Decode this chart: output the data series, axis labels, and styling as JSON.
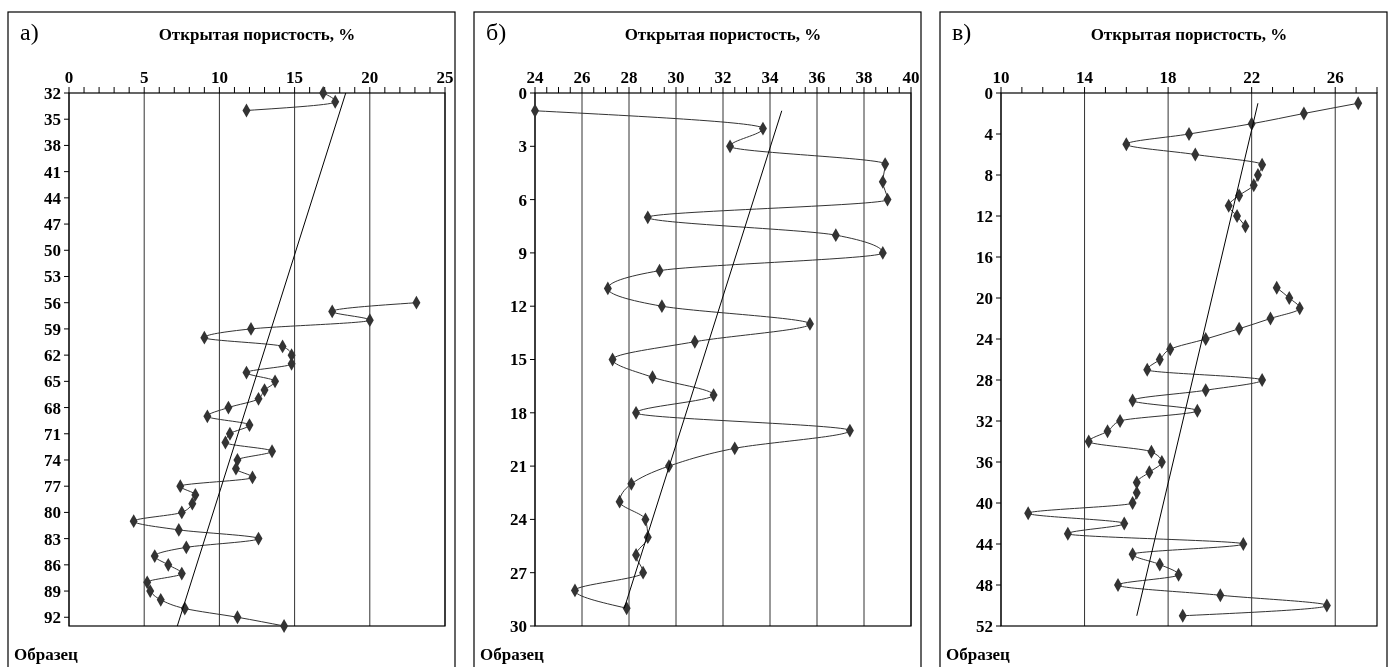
{
  "chart_data": [
    {
      "type": "line",
      "title": "а)",
      "xlabel": "Открытая пористость, %",
      "ylabel": "Образец",
      "orientation": "horizontal",
      "grid": "x",
      "line_style": "solid",
      "xlim": [
        0,
        25
      ],
      "xticks": [
        0,
        {
          "value": 1,
          "label": null
        },
        {
          "value": 2,
          "label": null
        },
        {
          "value": 3,
          "label": null
        },
        {
          "value": 4,
          "label": null
        },
        5,
        {
          "value": 6,
          "label": null
        },
        {
          "value": 7,
          "label": null
        },
        {
          "value": 8,
          "label": null
        },
        {
          "value": 9,
          "label": null
        },
        10,
        {
          "value": 11,
          "label": null
        },
        {
          "value": 12,
          "label": null
        },
        {
          "value": 13,
          "label": null
        },
        {
          "value": 14,
          "label": null
        },
        15,
        {
          "value": 16,
          "label": null
        },
        {
          "value": 17,
          "label": null
        },
        {
          "value": 18,
          "label": null
        },
        {
          "value": 19,
          "label": null
        },
        20,
        {
          "value": 21,
          "label": null
        },
        {
          "value": 22,
          "label": null
        },
        {
          "value": 23,
          "label": null
        },
        {
          "value": 24,
          "label": null
        },
        25
      ],
      "ylim": [
        93,
        32
      ],
      "yticks": [
        32,
        35,
        38,
        41,
        44,
        47,
        50,
        53,
        56,
        59,
        62,
        65,
        68,
        71,
        74,
        77,
        80,
        83,
        86,
        89,
        92
      ],
      "series": [
        {
          "color": "#333333",
          "marker": "diamond",
          "x": [
            32,
            33,
            34,
            35,
            56,
            57,
            58,
            59,
            60,
            61,
            62,
            63,
            64,
            65,
            66,
            67,
            68,
            69,
            70,
            71,
            72,
            73,
            74,
            75,
            76,
            77,
            78,
            79,
            80,
            81,
            82,
            83,
            84,
            85,
            86,
            87,
            88,
            89,
            90,
            91,
            92,
            93
          ],
          "values": [
            16.9,
            17.7,
            11.8,
            null,
            23.1,
            17.5,
            20.0,
            12.1,
            9.0,
            14.2,
            14.8,
            14.8,
            11.8,
            13.7,
            13.0,
            12.6,
            10.6,
            9.2,
            12.0,
            10.7,
            10.4,
            13.5,
            11.2,
            11.1,
            12.2,
            7.4,
            8.4,
            8.2,
            7.5,
            4.3,
            7.3,
            12.6,
            7.8,
            5.7,
            6.6,
            7.5,
            5.2,
            5.4,
            6.1,
            7.7,
            11.2,
            14.3
          ]
        },
        {
          "color": "#000000",
          "marker": "none",
          "x": [
            32,
            93
          ],
          "values": [
            18.4,
            7.2
          ]
        }
      ]
    },
    {
      "type": "line",
      "title": "б)",
      "xlabel": "Открытая пористость, %",
      "ylabel": "Образец",
      "orientation": "horizontal",
      "grid": "x",
      "line_style": "solid",
      "xlim": [
        24,
        40
      ],
      "xticks": [
        24,
        {
          "value": 24.5,
          "label": null
        },
        {
          "value": 25,
          "label": null
        },
        {
          "value": 25.5,
          "label": null
        },
        26,
        {
          "value": 26.5,
          "label": null
        },
        {
          "value": 27,
          "label": null
        },
        {
          "value": 27.5,
          "label": null
        },
        28,
        {
          "value": 28.5,
          "label": null
        },
        {
          "value": 29,
          "label": null
        },
        {
          "value": 29.5,
          "label": null
        },
        30,
        {
          "value": 30.5,
          "label": null
        },
        {
          "value": 31,
          "label": null
        },
        {
          "value": 31.5,
          "label": null
        },
        32,
        {
          "value": 32.5,
          "label": null
        },
        {
          "value": 33,
          "label": null
        },
        {
          "value": 33.5,
          "label": null
        },
        34,
        {
          "value": 34.5,
          "label": null
        },
        {
          "value": 35,
          "label": null
        },
        {
          "value": 35.5,
          "label": null
        },
        36,
        {
          "value": 36.5,
          "label": null
        },
        {
          "value": 37,
          "label": null
        },
        {
          "value": 37.5,
          "label": null
        },
        38,
        {
          "value": 38.5,
          "label": null
        },
        {
          "value": 39,
          "label": null
        },
        {
          "value": 39.5,
          "label": null
        },
        40
      ],
      "ylim": [
        30,
        0
      ],
      "yticks": [
        0,
        3,
        6,
        9,
        12,
        15,
        18,
        21,
        24,
        27,
        30
      ],
      "series": [
        {
          "color": "#333333",
          "marker": "diamond",
          "x": [
            1,
            2,
            3,
            4,
            5,
            6,
            7,
            8,
            9,
            10,
            11,
            12,
            13,
            14,
            15,
            16,
            17,
            18,
            19,
            20,
            21,
            22,
            23,
            24,
            25,
            26,
            27,
            28,
            29
          ],
          "values": [
            24.0,
            33.7,
            32.3,
            38.9,
            38.8,
            39.0,
            28.8,
            36.8,
            38.8,
            29.3,
            27.1,
            29.4,
            35.7,
            30.8,
            27.3,
            29.0,
            31.6,
            28.3,
            37.4,
            32.5,
            29.7,
            28.1,
            27.6,
            28.7,
            28.8,
            28.3,
            28.6,
            25.7,
            27.9
          ]
        },
        {
          "color": "#000000",
          "marker": "none",
          "x": [
            1,
            29
          ],
          "values": [
            34.5,
            27.8
          ]
        }
      ]
    },
    {
      "type": "line",
      "title": "в)",
      "xlabel": "Открытая пористость, %",
      "ylabel": "Образец",
      "orientation": "horizontal",
      "grid": "x",
      "line_style": "solid",
      "xlim": [
        10,
        28
      ],
      "xticks": [
        10,
        {
          "value": 11,
          "label": null
        },
        {
          "value": 12,
          "label": null
        },
        {
          "value": 13,
          "label": null
        },
        14,
        {
          "value": 15,
          "label": null
        },
        {
          "value": 16,
          "label": null
        },
        {
          "value": 17,
          "label": null
        },
        18,
        {
          "value": 19,
          "label": null
        },
        {
          "value": 20,
          "label": null
        },
        {
          "value": 21,
          "label": null
        },
        22,
        {
          "value": 23,
          "label": null
        },
        {
          "value": 24,
          "label": null
        },
        {
          "value": 25,
          "label": null
        },
        26,
        {
          "value": 27,
          "label": null
        },
        {
          "value": 28,
          "label": null
        }
      ],
      "ylim": [
        52,
        0
      ],
      "yticks": [
        0,
        4,
        8,
        12,
        16,
        20,
        24,
        28,
        32,
        36,
        40,
        44,
        48,
        52
      ],
      "series": [
        {
          "color": "#333333",
          "marker": "diamond",
          "x": [
            1,
            2,
            3,
            4,
            5,
            6,
            7,
            8,
            9,
            10,
            11,
            12,
            13,
            14,
            19,
            20,
            21,
            22,
            23,
            24,
            25,
            26,
            27,
            28,
            29,
            30,
            31,
            32,
            33,
            34,
            35,
            36,
            37,
            38,
            39,
            40,
            41,
            42,
            43,
            44,
            45,
            46,
            47,
            48,
            49,
            50,
            51
          ],
          "values": [
            27.1,
            24.5,
            22.0,
            19.0,
            16.0,
            19.3,
            22.5,
            22.3,
            22.1,
            21.4,
            20.9,
            21.3,
            21.7,
            null,
            23.2,
            23.8,
            24.3,
            22.9,
            21.4,
            19.8,
            18.1,
            17.6,
            17.0,
            22.5,
            19.8,
            16.3,
            19.4,
            15.7,
            15.1,
            14.2,
            17.2,
            17.7,
            17.1,
            16.5,
            16.5,
            16.3,
            11.3,
            15.9,
            13.2,
            21.6,
            16.3,
            17.6,
            18.5,
            15.6,
            20.5,
            25.6,
            18.7
          ]
        },
        {
          "color": "#000000",
          "marker": "none",
          "x": [
            1,
            51
          ],
          "values": [
            22.3,
            16.5
          ]
        }
      ]
    }
  ]
}
